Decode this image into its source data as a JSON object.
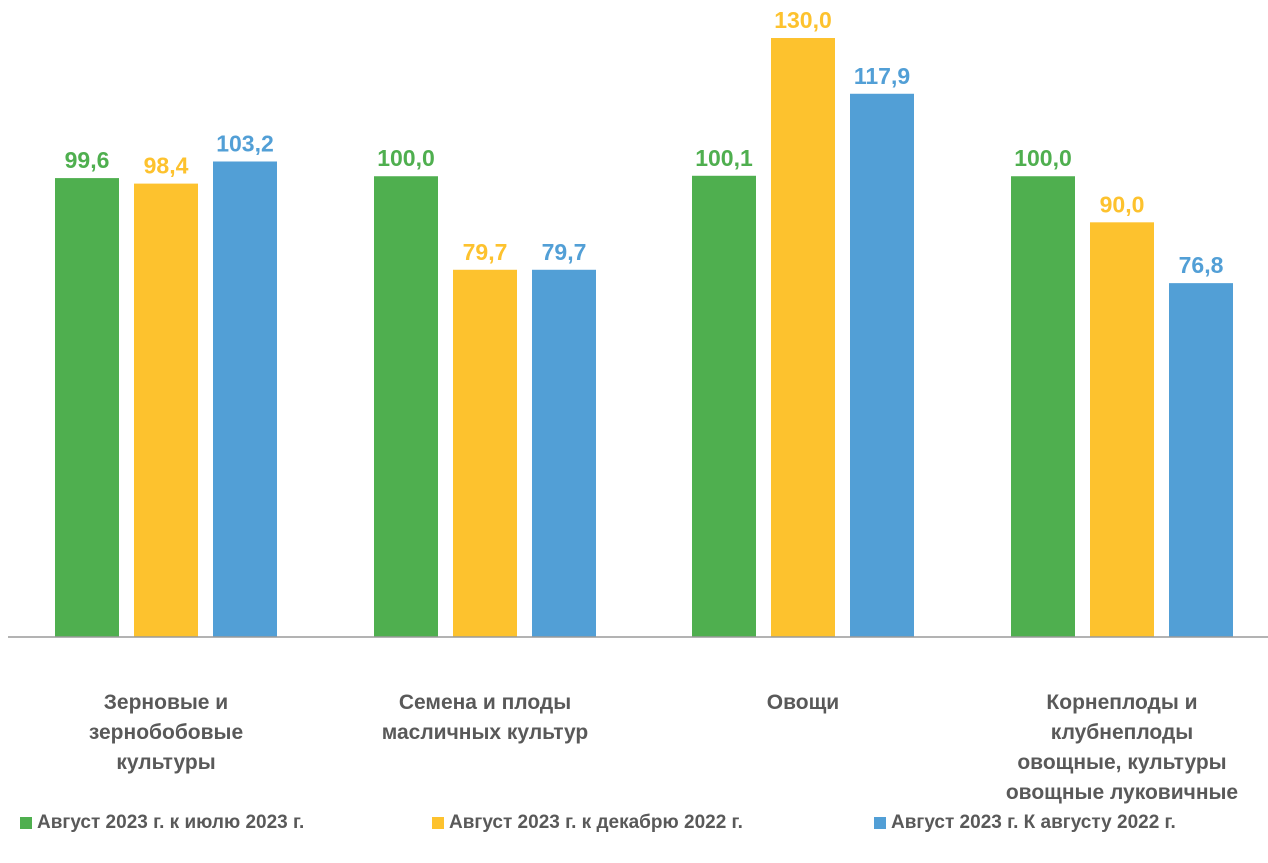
{
  "chart_data": {
    "type": "bar",
    "categories": [
      "Зерновые и\nзернобобовые\nкультуры",
      "Семена и плоды\nмасличных культур",
      "Овощи",
      "Корнеплоды и\nклубнеплоды\nовощные, культуры\nовощные луковичные"
    ],
    "series": [
      {
        "name": "Август 2023 г. к июлю 2023 г.",
        "color": "#4faf4f",
        "values": [
          99.6,
          100.0,
          100.1,
          100.0
        ],
        "labels": [
          "99,6",
          "100,0",
          "100,1",
          "100,0"
        ]
      },
      {
        "name": "Август 2023 г. к декабрю 2022 г.",
        "color": "#fdc22e",
        "values": [
          98.4,
          79.7,
          130.0,
          90.0
        ],
        "labels": [
          "98,4",
          "79,7",
          "130,0",
          "90,0"
        ]
      },
      {
        "name": "Август 2023 г. К августу 2022 г.",
        "color": "#529fd6",
        "values": [
          103.2,
          79.7,
          117.9,
          76.8
        ],
        "labels": [
          "103,2",
          "79,7",
          "117,9",
          "76,8"
        ]
      }
    ],
    "title": "",
    "xlabel": "",
    "ylabel": "",
    "ylim": [
      -140,
      130
    ],
    "grid": false,
    "legend_position": "bottom"
  }
}
